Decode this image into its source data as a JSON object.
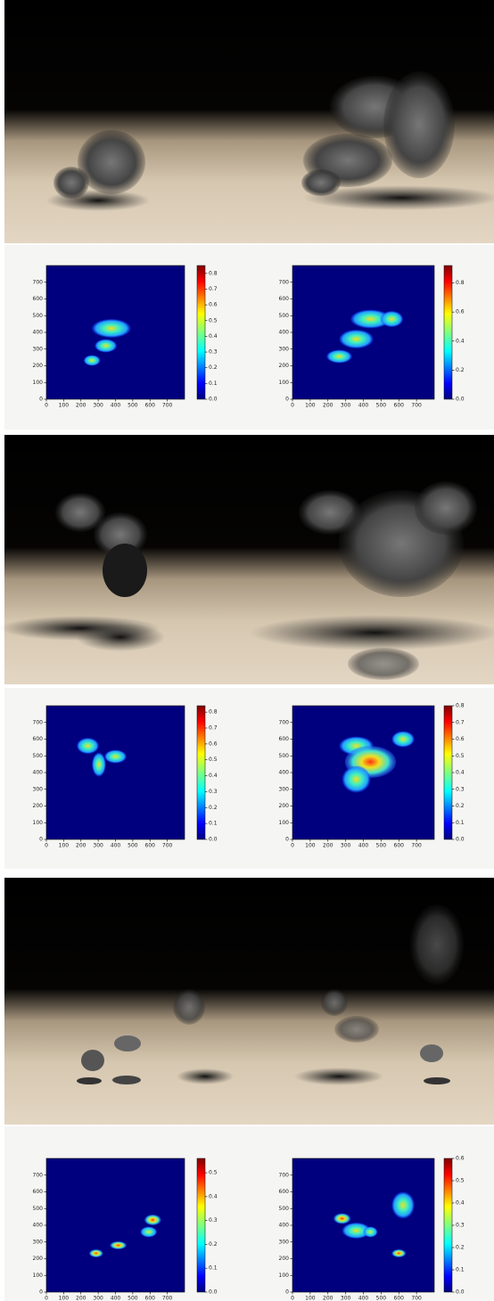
{
  "figure": {
    "rows": [
      {
        "plots": [
          {
            "xlim": [
              0,
              800
            ],
            "ylim": [
              0,
              800
            ],
            "xticks": [
              0,
              100,
              200,
              300,
              400,
              500,
              600,
              700
            ],
            "yticks": [
              0,
              100,
              200,
              300,
              400,
              500,
              600,
              700
            ],
            "colorbar": {
              "lim": [
                0,
                0.85
              ],
              "ticks": [
                {
                  "value": 0,
                  "label": "0.0"
                },
                {
                  "value": 0.1,
                  "label": "0.1"
                },
                {
                  "value": 0.2,
                  "label": "0.2"
                },
                {
                  "value": 0.3,
                  "label": "0.3"
                },
                {
                  "value": 0.4,
                  "label": "0.4"
                },
                {
                  "value": 0.5,
                  "label": "0.5"
                },
                {
                  "value": 0.6,
                  "label": "0.6"
                },
                {
                  "value": 0.7,
                  "label": "0.7"
                },
                {
                  "value": 0.8,
                  "label": "0.8"
                }
              ]
            }
          },
          {
            "xlim": [
              0,
              800
            ],
            "ylim": [
              0,
              800
            ],
            "xticks": [
              0,
              100,
              200,
              300,
              400,
              500,
              600,
              700
            ],
            "yticks": [
              0,
              100,
              200,
              300,
              400,
              500,
              600,
              700
            ],
            "colorbar": {
              "lim": [
                0,
                0.92
              ],
              "ticks": [
                {
                  "value": 0,
                  "label": "0.0"
                },
                {
                  "value": 0.2,
                  "label": "0.2"
                },
                {
                  "value": 0.4,
                  "label": "0.4"
                },
                {
                  "value": 0.6,
                  "label": "0.6"
                },
                {
                  "value": 0.8,
                  "label": "0.8"
                }
              ]
            }
          }
        ]
      },
      {
        "plots": [
          {
            "xlim": [
              0,
              800
            ],
            "ylim": [
              0,
              800
            ],
            "xticks": [
              0,
              100,
              200,
              300,
              400,
              500,
              600,
              700
            ],
            "yticks": [
              0,
              100,
              200,
              300,
              400,
              500,
              600,
              700
            ],
            "colorbar": {
              "lim": [
                0,
                0.84
              ],
              "ticks": [
                {
                  "value": 0,
                  "label": "0.0"
                },
                {
                  "value": 0.1,
                  "label": "0.1"
                },
                {
                  "value": 0.2,
                  "label": "0.2"
                },
                {
                  "value": 0.3,
                  "label": "0.3"
                },
                {
                  "value": 0.4,
                  "label": "0.4"
                },
                {
                  "value": 0.5,
                  "label": "0.5"
                },
                {
                  "value": 0.6,
                  "label": "0.6"
                },
                {
                  "value": 0.7,
                  "label": "0.7"
                },
                {
                  "value": 0.8,
                  "label": "0.8"
                }
              ]
            }
          },
          {
            "xlim": [
              0,
              800
            ],
            "ylim": [
              0,
              800
            ],
            "xticks": [
              0,
              100,
              200,
              300,
              400,
              500,
              600,
              700
            ],
            "yticks": [
              0,
              100,
              200,
              300,
              400,
              500,
              600,
              700
            ],
            "colorbar": {
              "lim": [
                0,
                0.8
              ],
              "ticks": [
                {
                  "value": 0,
                  "label": "0.0"
                },
                {
                  "value": 0.1,
                  "label": "0.1"
                },
                {
                  "value": 0.2,
                  "label": "0.2"
                },
                {
                  "value": 0.3,
                  "label": "0.3"
                },
                {
                  "value": 0.4,
                  "label": "0.4"
                },
                {
                  "value": 0.5,
                  "label": "0.5"
                },
                {
                  "value": 0.6,
                  "label": "0.6"
                },
                {
                  "value": 0.7,
                  "label": "0.7"
                },
                {
                  "value": 0.8,
                  "label": "0.8"
                }
              ]
            }
          }
        ]
      },
      {
        "plots": [
          {
            "xlim": [
              0,
              800
            ],
            "ylim": [
              0,
              800
            ],
            "xticks": [
              0,
              100,
              200,
              300,
              400,
              500,
              600,
              700
            ],
            "yticks": [
              0,
              100,
              200,
              300,
              400,
              500,
              600,
              700
            ],
            "colorbar": {
              "lim": [
                0,
                0.56
              ],
              "ticks": [
                {
                  "value": 0,
                  "label": "0.0"
                },
                {
                  "value": 0.1,
                  "label": "0.1"
                },
                {
                  "value": 0.2,
                  "label": "0.2"
                },
                {
                  "value": 0.3,
                  "label": "0.3"
                },
                {
                  "value": 0.4,
                  "label": "0.4"
                },
                {
                  "value": 0.5,
                  "label": "0.5"
                }
              ]
            }
          },
          {
            "xlim": [
              0,
              800
            ],
            "ylim": [
              0,
              800
            ],
            "xticks": [
              0,
              100,
              200,
              300,
              400,
              500,
              600,
              700
            ],
            "yticks": [
              0,
              100,
              200,
              300,
              400,
              500,
              600,
              700
            ],
            "colorbar": {
              "lim": [
                0,
                0.6
              ],
              "ticks": [
                {
                  "value": 0,
                  "label": "0.0"
                },
                {
                  "value": 0.1,
                  "label": "0.1"
                },
                {
                  "value": 0.2,
                  "label": "0.2"
                },
                {
                  "value": 0.3,
                  "label": "0.3"
                },
                {
                  "value": 0.4,
                  "label": "0.4"
                },
                {
                  "value": 0.5,
                  "label": "0.5"
                },
                {
                  "value": 0.6,
                  "label": "0.6"
                }
              ]
            }
          }
        ]
      }
    ]
  }
}
